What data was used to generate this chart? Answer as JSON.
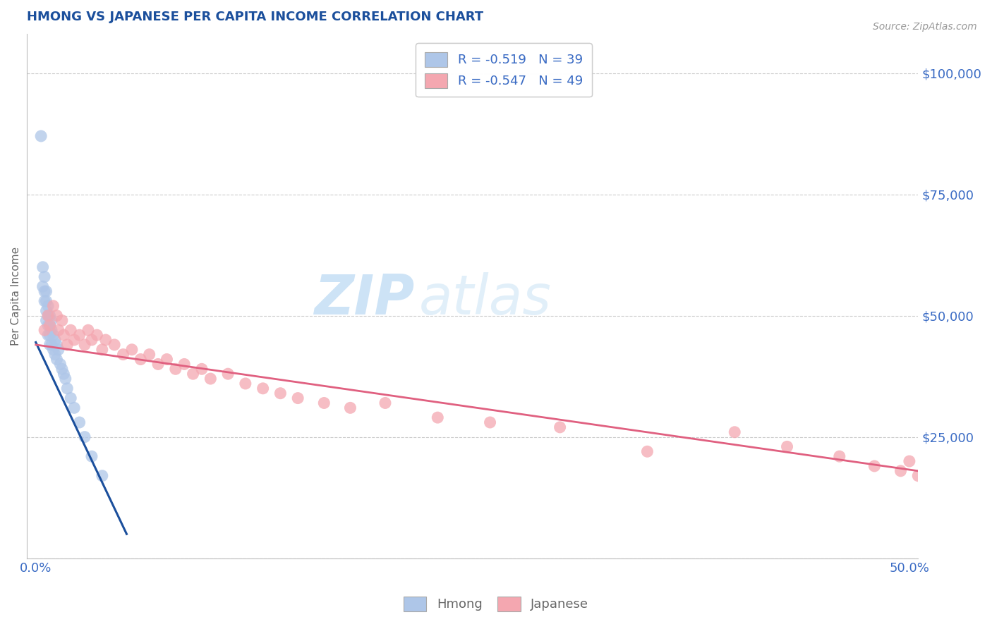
{
  "title": "HMONG VS JAPANESE PER CAPITA INCOME CORRELATION CHART",
  "source": "Source: ZipAtlas.com",
  "ylabel": "Per Capita Income",
  "xlim": [
    -0.005,
    0.505
  ],
  "ylim": [
    0,
    108000
  ],
  "yticks": [
    0,
    25000,
    50000,
    75000,
    100000
  ],
  "ytick_labels": [
    "",
    "$25,000",
    "$50,000",
    "$75,000",
    "$100,000"
  ],
  "xticks": [
    0.0,
    0.1,
    0.2,
    0.3,
    0.4,
    0.5
  ],
  "xtick_labels": [
    "0.0%",
    "",
    "",
    "",
    "",
    "50.0%"
  ],
  "legend1_label": "R = -0.519   N = 39",
  "legend2_label": "R = -0.547   N = 49",
  "hmong_color": "#aec6e8",
  "japanese_color": "#f4a7b0",
  "hmong_line_color": "#1b4f9c",
  "japanese_line_color": "#e06080",
  "title_color": "#1b4f9c",
  "tick_color": "#3a6bc4",
  "watermark_zip": "ZIP",
  "watermark_atlas": "atlas",
  "background_color": "#ffffff",
  "grid_color": "#cccccc",
  "hmong_x": [
    0.003,
    0.004,
    0.004,
    0.005,
    0.005,
    0.005,
    0.006,
    0.006,
    0.006,
    0.006,
    0.007,
    0.007,
    0.007,
    0.007,
    0.008,
    0.008,
    0.008,
    0.008,
    0.009,
    0.009,
    0.009,
    0.01,
    0.01,
    0.011,
    0.011,
    0.012,
    0.012,
    0.013,
    0.014,
    0.015,
    0.016,
    0.017,
    0.018,
    0.02,
    0.022,
    0.025,
    0.028,
    0.032,
    0.038
  ],
  "hmong_y": [
    87000,
    60000,
    56000,
    58000,
    55000,
    53000,
    55000,
    53000,
    51000,
    49000,
    52000,
    50000,
    48000,
    46000,
    50000,
    48000,
    46000,
    44000,
    49000,
    47000,
    44000,
    46000,
    43000,
    45000,
    42000,
    44000,
    41000,
    43000,
    40000,
    39000,
    38000,
    37000,
    35000,
    33000,
    31000,
    28000,
    25000,
    21000,
    17000
  ],
  "japanese_x": [
    0.005,
    0.007,
    0.008,
    0.01,
    0.012,
    0.013,
    0.015,
    0.016,
    0.018,
    0.02,
    0.022,
    0.025,
    0.028,
    0.03,
    0.032,
    0.035,
    0.038,
    0.04,
    0.045,
    0.05,
    0.055,
    0.06,
    0.065,
    0.07,
    0.075,
    0.08,
    0.085,
    0.09,
    0.095,
    0.1,
    0.11,
    0.12,
    0.13,
    0.14,
    0.15,
    0.165,
    0.18,
    0.2,
    0.23,
    0.26,
    0.3,
    0.35,
    0.4,
    0.43,
    0.46,
    0.48,
    0.495,
    0.5,
    0.505
  ],
  "japanese_y": [
    47000,
    50000,
    48000,
    52000,
    50000,
    47000,
    49000,
    46000,
    44000,
    47000,
    45000,
    46000,
    44000,
    47000,
    45000,
    46000,
    43000,
    45000,
    44000,
    42000,
    43000,
    41000,
    42000,
    40000,
    41000,
    39000,
    40000,
    38000,
    39000,
    37000,
    38000,
    36000,
    35000,
    34000,
    33000,
    32000,
    31000,
    32000,
    29000,
    28000,
    27000,
    22000,
    26000,
    23000,
    21000,
    19000,
    18000,
    20000,
    17000
  ],
  "hmong_line_x": [
    0.0,
    0.052
  ],
  "hmong_line_y": [
    44500,
    5000
  ],
  "japanese_line_x": [
    0.0,
    0.505
  ],
  "japanese_line_y": [
    44000,
    18000
  ]
}
